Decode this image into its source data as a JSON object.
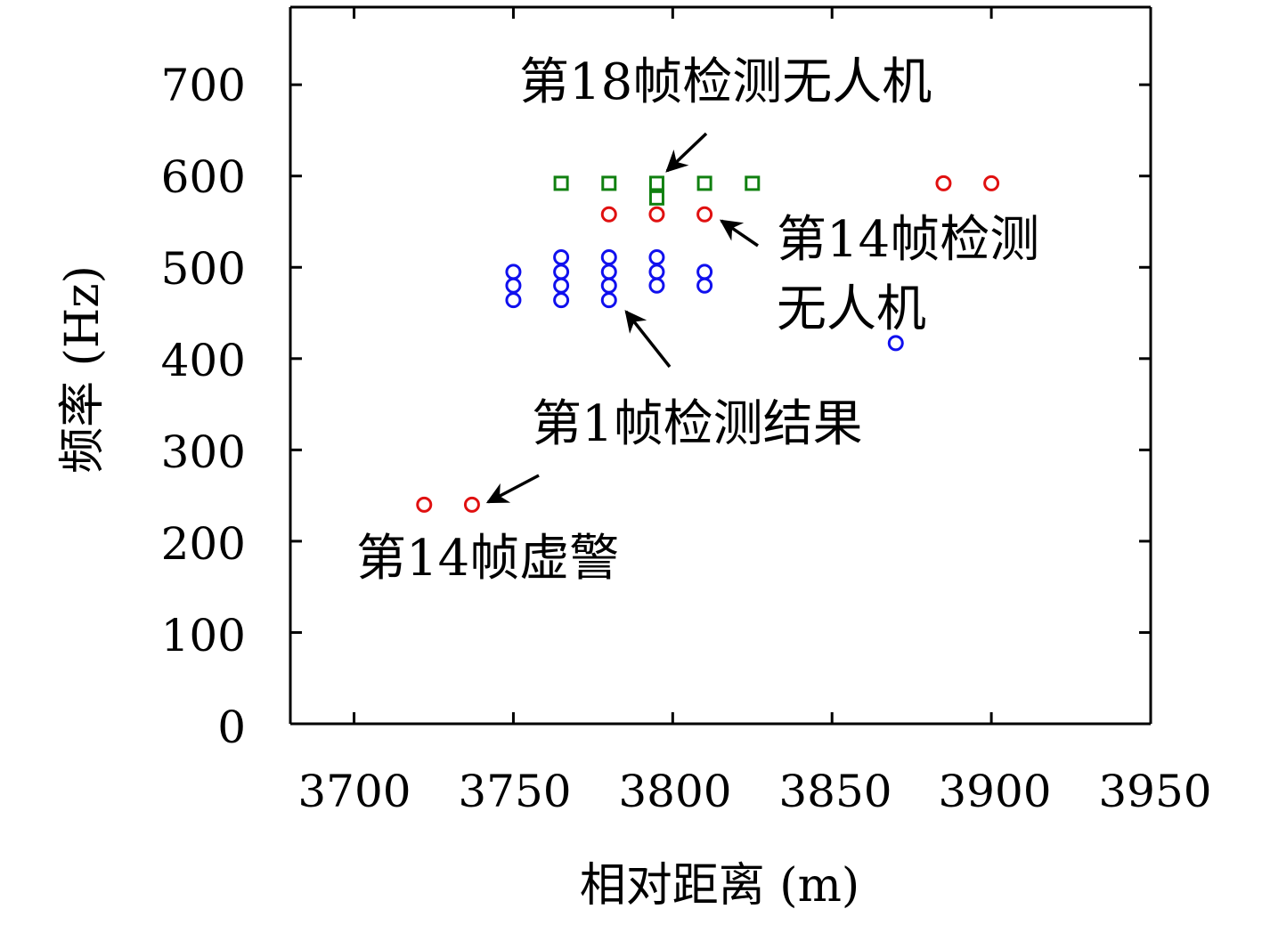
{
  "chart_data": {
    "type": "scatter",
    "xlabel": "相对距离 (m)",
    "ylabel": "频率 (Hz)",
    "xlim": [
      3680,
      3950
    ],
    "ylim": [
      0,
      785
    ],
    "xticks": [
      3700,
      3750,
      3800,
      3850,
      3900,
      3950
    ],
    "yticks": [
      0,
      100,
      200,
      300,
      400,
      500,
      600,
      700
    ],
    "grid": false,
    "colors": {
      "blue_circles": "#1010ee",
      "red_circles": "#e01010",
      "green_squares": "#108010",
      "axis": "#000000"
    },
    "series": [
      {
        "marker": "circle",
        "color": "#1010ee",
        "points": [
          [
            3750,
            495
          ],
          [
            3750,
            480
          ],
          [
            3750,
            464
          ],
          [
            3765,
            511
          ],
          [
            3765,
            495
          ],
          [
            3765,
            480
          ],
          [
            3765,
            464
          ],
          [
            3780,
            511
          ],
          [
            3780,
            495
          ],
          [
            3780,
            480
          ],
          [
            3780,
            464
          ],
          [
            3795,
            511
          ],
          [
            3795,
            495
          ],
          [
            3795,
            480
          ],
          [
            3810,
            495
          ],
          [
            3810,
            480
          ],
          [
            3870,
            417
          ]
        ]
      },
      {
        "marker": "circle",
        "color": "#e01010",
        "points": [
          [
            3780,
            558
          ],
          [
            3795,
            558
          ],
          [
            3810,
            558
          ],
          [
            3885,
            592
          ],
          [
            3900,
            592
          ],
          [
            3722,
            240
          ],
          [
            3737,
            240
          ]
        ]
      },
      {
        "marker": "square",
        "color": "#108010",
        "points": [
          [
            3765,
            592
          ],
          [
            3780,
            592
          ],
          [
            3795,
            592
          ],
          [
            3795,
            576
          ],
          [
            3810,
            592
          ],
          [
            3825,
            592
          ]
        ]
      }
    ],
    "annotations": [
      {
        "id": "frame18",
        "lines": [
          "第18帧检测无人机"
        ],
        "arrow_to": [
          3795,
          600
        ]
      },
      {
        "id": "frame14-detect",
        "lines": [
          "第14帧检测",
          "无人机"
        ],
        "arrow_to": [
          3813,
          552
        ]
      },
      {
        "id": "frame1",
        "lines": [
          "第1帧检测结果"
        ],
        "arrow_to": [
          3782,
          455
        ]
      },
      {
        "id": "frame14-false",
        "lines": [
          "第14帧虚警"
        ],
        "arrow_to": [
          3740,
          242
        ]
      }
    ]
  }
}
